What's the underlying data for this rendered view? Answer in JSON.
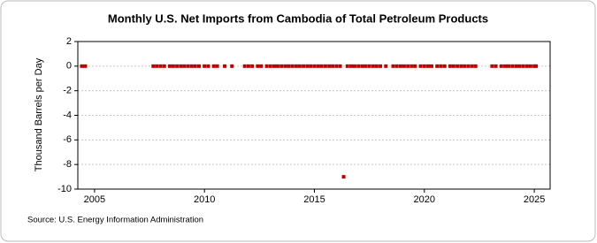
{
  "chart_data": {
    "type": "scatter",
    "title": "Monthly U.S. Net Imports from Cambodia of Total Petroleum Products",
    "y_label": "Thousand Barrels per Day",
    "source": "Source: U.S. Energy Information Administration",
    "xlim": [
      2004.24,
      2025.72
    ],
    "xticks": [
      2005,
      2010,
      2015,
      2020,
      2025
    ],
    "ylim": [
      -10,
      2
    ],
    "yticks": [
      -10,
      -8,
      -6,
      -4,
      -2,
      0,
      2
    ],
    "grid": true,
    "series": [
      {
        "color": "#c00000",
        "x": [
          2004.42,
          2004.58,
          2007.67,
          2007.83,
          2008.0,
          2008.17,
          2008.42,
          2008.58,
          2008.75,
          2008.92,
          2009.08,
          2009.25,
          2009.42,
          2009.58,
          2009.75,
          2010.0,
          2010.17,
          2010.42,
          2010.58,
          2010.92,
          2011.25,
          2011.83,
          2012.0,
          2012.17,
          2012.42,
          2012.58,
          2012.83,
          2013.0,
          2013.17,
          2013.33,
          2013.5,
          2013.67,
          2013.83,
          2014.0,
          2014.17,
          2014.33,
          2014.5,
          2014.67,
          2014.83,
          2015.0,
          2015.17,
          2015.33,
          2015.5,
          2015.67,
          2015.83,
          2016.0,
          2016.17,
          2016.33,
          2016.5,
          2016.67,
          2016.83,
          2017.0,
          2017.17,
          2017.33,
          2017.5,
          2017.67,
          2017.83,
          2018.0,
          2018.25,
          2018.58,
          2018.75,
          2018.92,
          2019.08,
          2019.25,
          2019.42,
          2019.58,
          2019.83,
          2020.0,
          2020.17,
          2020.33,
          2020.58,
          2020.75,
          2020.92,
          2021.17,
          2021.33,
          2021.5,
          2021.67,
          2021.83,
          2022.0,
          2022.17,
          2022.33,
          2023.08,
          2023.25,
          2023.5,
          2023.67,
          2023.83,
          2024.0,
          2024.17,
          2024.33,
          2024.5,
          2024.67,
          2024.83,
          2025.0,
          2025.08
        ],
        "values": [
          0,
          0,
          0,
          0,
          0,
          0,
          0,
          0,
          0,
          0,
          0,
          0,
          0,
          0,
          0,
          0,
          0,
          0,
          0,
          0,
          0,
          0,
          0,
          0,
          0,
          0,
          0,
          0,
          0,
          0,
          0,
          0,
          0,
          0,
          0,
          0,
          0,
          0,
          0,
          0,
          0,
          0,
          0,
          0,
          0,
          0,
          0,
          -9,
          0,
          0,
          0,
          0,
          0,
          0,
          0,
          0,
          0,
          0,
          0,
          0,
          0,
          0,
          0,
          0,
          0,
          0,
          0,
          0,
          0,
          0,
          0,
          0,
          0,
          0,
          0,
          0,
          0,
          0,
          0,
          0,
          0,
          0,
          0,
          0,
          0,
          0,
          0,
          0,
          0,
          0,
          0,
          0,
          0,
          0
        ]
      }
    ]
  }
}
